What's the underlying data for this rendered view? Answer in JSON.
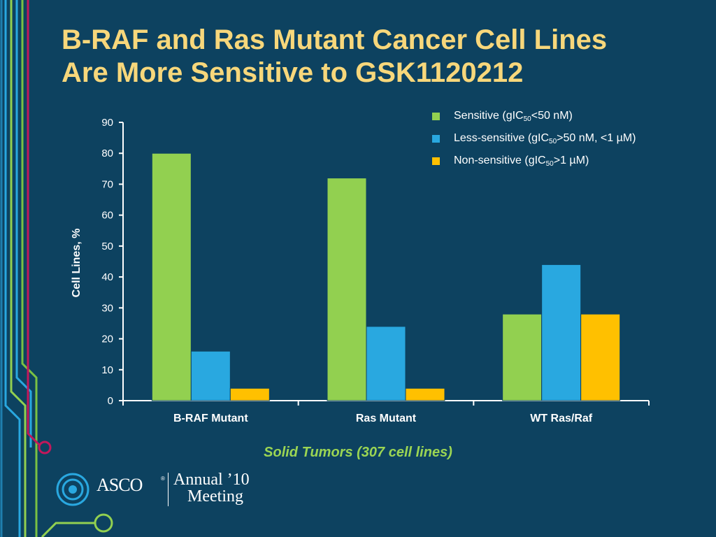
{
  "slide": {
    "title_line1": "B-RAF and Ras Mutant Cancer Cell Lines",
    "title_line2": "Are More Sensitive to GSK1120212",
    "subtitle": "Solid Tumors (307 cell lines)"
  },
  "legend": {
    "sensitive": {
      "pre": "Sensitive (gIC",
      "sub": "50",
      "post": "<50 nM)"
    },
    "less_sensitive": {
      "pre": "Less-sensitive (gIC",
      "sub": "50",
      "post": ">50 nM, <1 µM)"
    },
    "non_sensitive": {
      "pre": "Non-sensitive (gIC",
      "sub": "50",
      "post": ">1 µM)"
    }
  },
  "footer": {
    "asco": "ASCO",
    "reg": "®",
    "annual": "Annual ’10",
    "meeting": "Meeting"
  },
  "colors": {
    "background": "#0d4260",
    "title": "#f7d77b",
    "sensitive": "#92d050",
    "less_sensitive": "#29a8e0",
    "non_sensitive": "#ffc000",
    "subtitle": "#9bd553",
    "axis": "#ffffff"
  },
  "chart_data": {
    "type": "bar",
    "categories": [
      "B-RAF Mutant",
      "Ras Mutant",
      "WT Ras/Raf"
    ],
    "series": [
      {
        "name": "Sensitive (gIC50<50 nM)",
        "color": "#92d050",
        "values": [
          80,
          72,
          28
        ]
      },
      {
        "name": "Less-sensitive (gIC50>50 nM, <1 µM)",
        "color": "#29a8e0",
        "values": [
          16,
          24,
          44
        ]
      },
      {
        "name": "Non-sensitive (gIC50>1 µM)",
        "color": "#ffc000",
        "values": [
          4,
          4,
          28
        ]
      }
    ],
    "ylabel": "Cell Lines, %",
    "ylim": [
      0,
      90
    ],
    "yticks": [
      0,
      10,
      20,
      30,
      40,
      50,
      60,
      70,
      80,
      90
    ],
    "legend_position": "top-right",
    "grid": false
  }
}
